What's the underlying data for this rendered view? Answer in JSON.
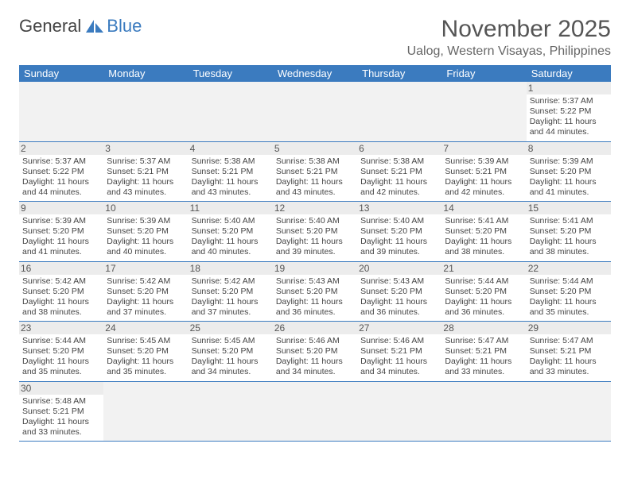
{
  "brand": {
    "part1": "General",
    "part2": "Blue"
  },
  "title": "November 2025",
  "location": "Ualog, Western Visayas, Philippines",
  "colors": {
    "header_bg": "#3b7bbf",
    "header_text": "#ffffff",
    "daynum_bg": "#ececec",
    "blank_bg": "#f2f2f2",
    "border": "#3b7bbf",
    "text": "#444444",
    "title_color": "#555555"
  },
  "weekdays": [
    "Sunday",
    "Monday",
    "Tuesday",
    "Wednesday",
    "Thursday",
    "Friday",
    "Saturday"
  ],
  "weeks": [
    [
      null,
      null,
      null,
      null,
      null,
      null,
      {
        "n": "1",
        "sr": "5:37 AM",
        "ss": "5:22 PM",
        "dl": "11 hours and 44 minutes."
      }
    ],
    [
      {
        "n": "2",
        "sr": "5:37 AM",
        "ss": "5:22 PM",
        "dl": "11 hours and 44 minutes."
      },
      {
        "n": "3",
        "sr": "5:37 AM",
        "ss": "5:21 PM",
        "dl": "11 hours and 43 minutes."
      },
      {
        "n": "4",
        "sr": "5:38 AM",
        "ss": "5:21 PM",
        "dl": "11 hours and 43 minutes."
      },
      {
        "n": "5",
        "sr": "5:38 AM",
        "ss": "5:21 PM",
        "dl": "11 hours and 43 minutes."
      },
      {
        "n": "6",
        "sr": "5:38 AM",
        "ss": "5:21 PM",
        "dl": "11 hours and 42 minutes."
      },
      {
        "n": "7",
        "sr": "5:39 AM",
        "ss": "5:21 PM",
        "dl": "11 hours and 42 minutes."
      },
      {
        "n": "8",
        "sr": "5:39 AM",
        "ss": "5:20 PM",
        "dl": "11 hours and 41 minutes."
      }
    ],
    [
      {
        "n": "9",
        "sr": "5:39 AM",
        "ss": "5:20 PM",
        "dl": "11 hours and 41 minutes."
      },
      {
        "n": "10",
        "sr": "5:39 AM",
        "ss": "5:20 PM",
        "dl": "11 hours and 40 minutes."
      },
      {
        "n": "11",
        "sr": "5:40 AM",
        "ss": "5:20 PM",
        "dl": "11 hours and 40 minutes."
      },
      {
        "n": "12",
        "sr": "5:40 AM",
        "ss": "5:20 PM",
        "dl": "11 hours and 39 minutes."
      },
      {
        "n": "13",
        "sr": "5:40 AM",
        "ss": "5:20 PM",
        "dl": "11 hours and 39 minutes."
      },
      {
        "n": "14",
        "sr": "5:41 AM",
        "ss": "5:20 PM",
        "dl": "11 hours and 38 minutes."
      },
      {
        "n": "15",
        "sr": "5:41 AM",
        "ss": "5:20 PM",
        "dl": "11 hours and 38 minutes."
      }
    ],
    [
      {
        "n": "16",
        "sr": "5:42 AM",
        "ss": "5:20 PM",
        "dl": "11 hours and 38 minutes."
      },
      {
        "n": "17",
        "sr": "5:42 AM",
        "ss": "5:20 PM",
        "dl": "11 hours and 37 minutes."
      },
      {
        "n": "18",
        "sr": "5:42 AM",
        "ss": "5:20 PM",
        "dl": "11 hours and 37 minutes."
      },
      {
        "n": "19",
        "sr": "5:43 AM",
        "ss": "5:20 PM",
        "dl": "11 hours and 36 minutes."
      },
      {
        "n": "20",
        "sr": "5:43 AM",
        "ss": "5:20 PM",
        "dl": "11 hours and 36 minutes."
      },
      {
        "n": "21",
        "sr": "5:44 AM",
        "ss": "5:20 PM",
        "dl": "11 hours and 36 minutes."
      },
      {
        "n": "22",
        "sr": "5:44 AM",
        "ss": "5:20 PM",
        "dl": "11 hours and 35 minutes."
      }
    ],
    [
      {
        "n": "23",
        "sr": "5:44 AM",
        "ss": "5:20 PM",
        "dl": "11 hours and 35 minutes."
      },
      {
        "n": "24",
        "sr": "5:45 AM",
        "ss": "5:20 PM",
        "dl": "11 hours and 35 minutes."
      },
      {
        "n": "25",
        "sr": "5:45 AM",
        "ss": "5:20 PM",
        "dl": "11 hours and 34 minutes."
      },
      {
        "n": "26",
        "sr": "5:46 AM",
        "ss": "5:20 PM",
        "dl": "11 hours and 34 minutes."
      },
      {
        "n": "27",
        "sr": "5:46 AM",
        "ss": "5:21 PM",
        "dl": "11 hours and 34 minutes."
      },
      {
        "n": "28",
        "sr": "5:47 AM",
        "ss": "5:21 PM",
        "dl": "11 hours and 33 minutes."
      },
      {
        "n": "29",
        "sr": "5:47 AM",
        "ss": "5:21 PM",
        "dl": "11 hours and 33 minutes."
      }
    ],
    [
      {
        "n": "30",
        "sr": "5:48 AM",
        "ss": "5:21 PM",
        "dl": "11 hours and 33 minutes."
      },
      null,
      null,
      null,
      null,
      null,
      null
    ]
  ],
  "labels": {
    "sunrise": "Sunrise:",
    "sunset": "Sunset:",
    "daylight": "Daylight:"
  }
}
